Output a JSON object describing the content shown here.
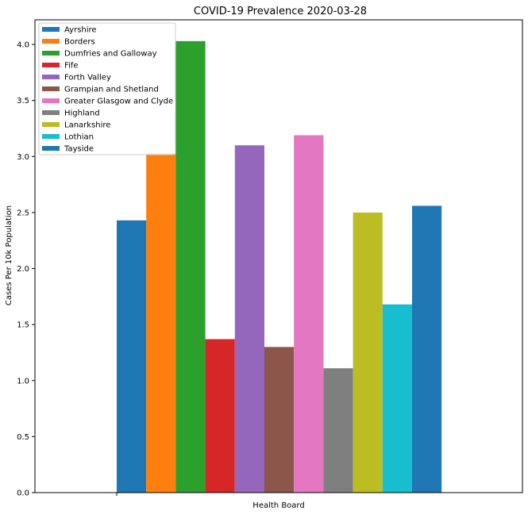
{
  "chart_data": {
    "type": "bar",
    "title": "COVID-19 Prevalence 2020-03-28",
    "xlabel": "Health Board",
    "ylabel": "Cases Per 10k Population",
    "ylim": [
      0,
      4.22
    ],
    "yticks": [
      0.0,
      0.5,
      1.0,
      1.5,
      2.0,
      2.5,
      3.0,
      3.5,
      4.0
    ],
    "ytick_labels": [
      "0.0",
      "0.5",
      "1.0",
      "1.5",
      "2.0",
      "2.5",
      "3.0",
      "3.5",
      "4.0"
    ],
    "grid": false,
    "legend_position": "top-left",
    "series": [
      {
        "name": "Ayrshire",
        "value": 2.43,
        "color": "#1f77b4"
      },
      {
        "name": "Borders",
        "value": 3.03,
        "color": "#ff7f0e"
      },
      {
        "name": "Dumfries and Galloway",
        "value": 4.03,
        "color": "#2ca02c"
      },
      {
        "name": "Fife",
        "value": 1.37,
        "color": "#d62728"
      },
      {
        "name": "Forth Valley",
        "value": 3.1,
        "color": "#9467bd"
      },
      {
        "name": "Grampian and Shetland",
        "value": 1.3,
        "color": "#8c564b"
      },
      {
        "name": "Greater Glasgow and Clyde",
        "value": 3.19,
        "color": "#e377c2"
      },
      {
        "name": "Highland",
        "value": 1.11,
        "color": "#7f7f7f"
      },
      {
        "name": "Lanarkshire",
        "value": 2.5,
        "color": "#bcbd22"
      },
      {
        "name": "Lothian",
        "value": 1.68,
        "color": "#17becf"
      },
      {
        "name": "Tayside",
        "value": 2.56,
        "color": "#1f77b4"
      }
    ]
  }
}
